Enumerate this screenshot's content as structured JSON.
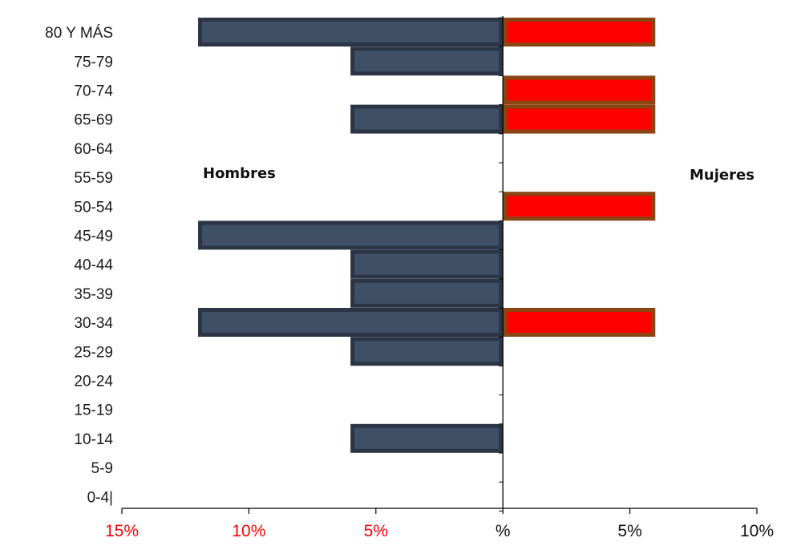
{
  "chart_data": {
    "type": "bar",
    "subtype": "population-pyramid",
    "categories": [
      "80 Y MÁS",
      "75-79",
      "70-74",
      "65-69",
      "60-64",
      "55-59",
      "50-54",
      "45-49",
      "40-44",
      "35-39",
      "30-34",
      "25-29",
      "20-24",
      "15-19",
      "10-14",
      "5-9",
      "0-4|"
    ],
    "series": [
      {
        "name": "Hombres",
        "side": "left",
        "color": "#3f4f66",
        "border_color": "#2b3545",
        "values": [
          12,
          6,
          0,
          6,
          0,
          0,
          0,
          12,
          6,
          6,
          12,
          6,
          0,
          0,
          6,
          0,
          0
        ]
      },
      {
        "name": "Mujeres",
        "side": "right",
        "color": "#ff0000",
        "border_color": "#8b4513",
        "values": [
          6,
          0,
          6,
          6,
          0,
          0,
          6,
          0,
          0,
          0,
          6,
          0,
          0,
          0,
          0,
          0,
          0
        ]
      }
    ],
    "annotations": {
      "left": "Hombres",
      "right": "Mujeres"
    },
    "x_axis": {
      "range": [
        -15,
        10
      ],
      "ticks": [
        {
          "value": -15,
          "label": "15%",
          "color": "#ff0000"
        },
        {
          "value": -10,
          "label": "10%",
          "color": "#ff0000"
        },
        {
          "value": -5,
          "label": "5%",
          "color": "#ff0000"
        },
        {
          "value": 0,
          "label": "%",
          "color": "#111111"
        },
        {
          "value": 5,
          "label": "5%",
          "color": "#111111"
        },
        {
          "value": 10,
          "label": "10%",
          "color": "#111111"
        }
      ]
    },
    "title": "",
    "xlabel": "",
    "ylabel": "",
    "grid": false,
    "legend": "none"
  }
}
